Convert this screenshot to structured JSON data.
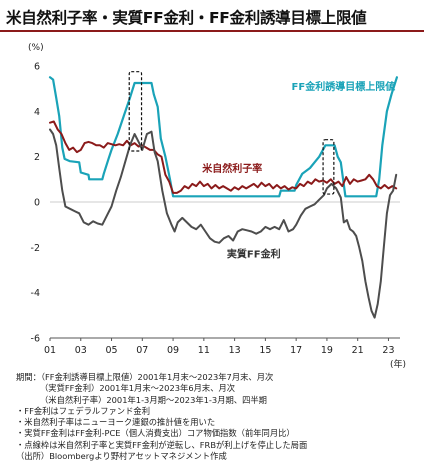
{
  "title": "米自然利子率・実質FF金利・FF金利誘導目標上限値",
  "chart_data": {
    "type": "line",
    "yunit": "(%)",
    "xunit": "(年)",
    "ylim": [
      -6,
      6
    ],
    "yticks": [
      6,
      4,
      2,
      0,
      -2,
      -4,
      -6
    ],
    "xlim": [
      2001.0,
      2023.75
    ],
    "xticks": [
      {
        "label": "01",
        "value": 2001
      },
      {
        "label": "03",
        "value": 2003
      },
      {
        "label": "05",
        "value": 2005
      },
      {
        "label": "07",
        "value": 2007
      },
      {
        "label": "09",
        "value": 2009
      },
      {
        "label": "11",
        "value": 2011
      },
      {
        "label": "13",
        "value": 2013
      },
      {
        "label": "15",
        "value": 2015
      },
      {
        "label": "17",
        "value": 2017
      },
      {
        "label": "19",
        "value": 2019
      },
      {
        "label": "21",
        "value": 2021
      },
      {
        "label": "23",
        "value": 2023
      }
    ],
    "grid": false,
    "series": [
      {
        "name": "FF金利誘導目標上限値",
        "color": "#1aa3b8",
        "points": [
          [
            2001.0,
            5.5
          ],
          [
            2001.2,
            5.4
          ],
          [
            2001.4,
            4.6
          ],
          [
            2001.6,
            3.8
          ],
          [
            2001.8,
            2.4
          ],
          [
            2001.95,
            1.9
          ],
          [
            2002.3,
            1.8
          ],
          [
            2002.9,
            1.75
          ],
          [
            2003.0,
            1.3
          ],
          [
            2003.5,
            1.2
          ],
          [
            2003.55,
            1.0
          ],
          [
            2004.4,
            1.0
          ],
          [
            2004.5,
            1.25
          ],
          [
            2004.8,
            1.9
          ],
          [
            2005.0,
            2.3
          ],
          [
            2005.4,
            3.0
          ],
          [
            2005.8,
            3.8
          ],
          [
            2006.2,
            4.6
          ],
          [
            2006.5,
            5.25
          ],
          [
            2007.6,
            5.25
          ],
          [
            2007.75,
            4.75
          ],
          [
            2008.0,
            4.2
          ],
          [
            2008.2,
            2.8
          ],
          [
            2008.5,
            2.0
          ],
          [
            2008.8,
            1.0
          ],
          [
            2009.0,
            0.25
          ],
          [
            2015.9,
            0.25
          ],
          [
            2016.0,
            0.5
          ],
          [
            2016.9,
            0.5
          ],
          [
            2017.0,
            0.75
          ],
          [
            2017.4,
            1.25
          ],
          [
            2017.9,
            1.5
          ],
          [
            2018.2,
            1.75
          ],
          [
            2018.5,
            2.0
          ],
          [
            2018.9,
            2.5
          ],
          [
            2019.5,
            2.5
          ],
          [
            2019.7,
            2.0
          ],
          [
            2019.9,
            1.75
          ],
          [
            2020.2,
            0.25
          ],
          [
            2022.2,
            0.25
          ],
          [
            2022.4,
            1.0
          ],
          [
            2022.6,
            2.5
          ],
          [
            2022.9,
            4.0
          ],
          [
            2023.2,
            4.75
          ],
          [
            2023.55,
            5.5
          ]
        ]
      },
      {
        "name": "米自然利子率",
        "color": "#8b1a1a",
        "points": [
          [
            2001.0,
            3.5
          ],
          [
            2001.25,
            3.55
          ],
          [
            2001.5,
            3.2
          ],
          [
            2001.75,
            3.0
          ],
          [
            2002.0,
            2.6
          ],
          [
            2002.25,
            2.3
          ],
          [
            2002.5,
            2.4
          ],
          [
            2002.75,
            2.2
          ],
          [
            2003.0,
            2.3
          ],
          [
            2003.25,
            2.6
          ],
          [
            2003.5,
            2.65
          ],
          [
            2003.75,
            2.6
          ],
          [
            2004.0,
            2.5
          ],
          [
            2004.25,
            2.5
          ],
          [
            2004.5,
            2.4
          ],
          [
            2004.75,
            2.6
          ],
          [
            2005.0,
            2.55
          ],
          [
            2005.25,
            2.5
          ],
          [
            2005.5,
            2.55
          ],
          [
            2005.75,
            2.5
          ],
          [
            2006.0,
            2.7
          ],
          [
            2006.25,
            2.5
          ],
          [
            2006.5,
            2.6
          ],
          [
            2006.75,
            2.45
          ],
          [
            2007.0,
            2.5
          ],
          [
            2007.25,
            2.4
          ],
          [
            2007.5,
            2.3
          ],
          [
            2007.75,
            2.3
          ],
          [
            2008.0,
            2.1
          ],
          [
            2008.25,
            2.0
          ],
          [
            2008.5,
            1.2
          ],
          [
            2008.75,
            0.9
          ],
          [
            2009.0,
            0.4
          ],
          [
            2009.25,
            0.4
          ],
          [
            2009.5,
            0.5
          ],
          [
            2009.75,
            0.7
          ],
          [
            2010.0,
            0.6
          ],
          [
            2010.25,
            0.8
          ],
          [
            2010.5,
            0.7
          ],
          [
            2010.75,
            0.9
          ],
          [
            2011.0,
            0.7
          ],
          [
            2011.25,
            0.8
          ],
          [
            2011.5,
            0.6
          ],
          [
            2011.75,
            0.75
          ],
          [
            2012.0,
            0.6
          ],
          [
            2012.25,
            0.7
          ],
          [
            2012.5,
            0.6
          ],
          [
            2012.75,
            0.5
          ],
          [
            2013.0,
            0.65
          ],
          [
            2013.25,
            0.55
          ],
          [
            2013.5,
            0.7
          ],
          [
            2013.75,
            0.6
          ],
          [
            2014.0,
            0.7
          ],
          [
            2014.25,
            0.8
          ],
          [
            2014.5,
            0.65
          ],
          [
            2014.75,
            0.85
          ],
          [
            2015.0,
            0.7
          ],
          [
            2015.25,
            0.8
          ],
          [
            2015.5,
            0.6
          ],
          [
            2015.75,
            0.75
          ],
          [
            2016.0,
            0.6
          ],
          [
            2016.25,
            0.7
          ],
          [
            2016.5,
            0.55
          ],
          [
            2016.75,
            0.65
          ],
          [
            2017.0,
            0.6
          ],
          [
            2017.25,
            0.8
          ],
          [
            2017.5,
            0.7
          ],
          [
            2017.75,
            0.9
          ],
          [
            2018.0,
            0.8
          ],
          [
            2018.25,
            1.0
          ],
          [
            2018.5,
            0.9
          ],
          [
            2018.75,
            0.95
          ],
          [
            2019.0,
            0.85
          ],
          [
            2019.25,
            1.0
          ],
          [
            2019.5,
            0.8
          ],
          [
            2019.75,
            0.9
          ],
          [
            2020.0,
            0.7
          ],
          [
            2020.25,
            1.1
          ],
          [
            2020.5,
            0.8
          ],
          [
            2020.75,
            1.0
          ],
          [
            2021.0,
            0.9
          ],
          [
            2021.25,
            0.95
          ],
          [
            2021.5,
            1.0
          ],
          [
            2021.75,
            1.2
          ],
          [
            2022.0,
            1.0
          ],
          [
            2022.25,
            0.7
          ],
          [
            2022.5,
            0.6
          ],
          [
            2022.75,
            0.75
          ],
          [
            2023.0,
            0.6
          ],
          [
            2023.25,
            0.7
          ],
          [
            2023.5,
            0.6
          ]
        ]
      },
      {
        "name": "実質FF金利",
        "color": "#4d4d4d",
        "points": [
          [
            2001.0,
            3.2
          ],
          [
            2001.2,
            3.0
          ],
          [
            2001.4,
            2.5
          ],
          [
            2001.6,
            1.5
          ],
          [
            2001.8,
            0.5
          ],
          [
            2002.0,
            -0.2
          ],
          [
            2002.3,
            -0.3
          ],
          [
            2002.6,
            -0.4
          ],
          [
            2002.9,
            -0.5
          ],
          [
            2003.2,
            -0.9
          ],
          [
            2003.5,
            -1.0
          ],
          [
            2003.8,
            -0.85
          ],
          [
            2004.1,
            -0.95
          ],
          [
            2004.4,
            -1.0
          ],
          [
            2004.7,
            -0.6
          ],
          [
            2005.0,
            -0.2
          ],
          [
            2005.3,
            0.5
          ],
          [
            2005.6,
            1.1
          ],
          [
            2005.9,
            1.8
          ],
          [
            2006.2,
            2.5
          ],
          [
            2006.5,
            3.0
          ],
          [
            2006.8,
            2.6
          ],
          [
            2007.0,
            2.3
          ],
          [
            2007.3,
            3.0
          ],
          [
            2007.6,
            3.1
          ],
          [
            2007.8,
            2.2
          ],
          [
            2008.0,
            1.8
          ],
          [
            2008.3,
            0.5
          ],
          [
            2008.6,
            -0.5
          ],
          [
            2008.9,
            -1.0
          ],
          [
            2009.1,
            -1.3
          ],
          [
            2009.3,
            -0.9
          ],
          [
            2009.6,
            -0.7
          ],
          [
            2009.9,
            -0.9
          ],
          [
            2010.2,
            -1.1
          ],
          [
            2010.5,
            -1.2
          ],
          [
            2010.8,
            -1.0
          ],
          [
            2011.1,
            -1.3
          ],
          [
            2011.4,
            -1.6
          ],
          [
            2011.7,
            -1.75
          ],
          [
            2012.0,
            -1.8
          ],
          [
            2012.3,
            -1.6
          ],
          [
            2012.6,
            -1.5
          ],
          [
            2012.9,
            -1.7
          ],
          [
            2013.2,
            -1.3
          ],
          [
            2013.5,
            -1.2
          ],
          [
            2013.8,
            -1.25
          ],
          [
            2014.1,
            -1.3
          ],
          [
            2014.4,
            -1.4
          ],
          [
            2014.7,
            -1.3
          ],
          [
            2015.0,
            -1.1
          ],
          [
            2015.3,
            -1.2
          ],
          [
            2015.6,
            -1.1
          ],
          [
            2015.9,
            -1.2
          ],
          [
            2016.2,
            -0.8
          ],
          [
            2016.5,
            -1.3
          ],
          [
            2016.8,
            -1.2
          ],
          [
            2017.0,
            -1.0
          ],
          [
            2017.3,
            -0.6
          ],
          [
            2017.6,
            -0.3
          ],
          [
            2017.9,
            -0.2
          ],
          [
            2018.2,
            -0.1
          ],
          [
            2018.5,
            0.1
          ],
          [
            2018.8,
            0.3
          ],
          [
            2019.0,
            0.6
          ],
          [
            2019.3,
            0.8
          ],
          [
            2019.6,
            0.6
          ],
          [
            2019.9,
            0.2
          ],
          [
            2020.1,
            -0.9
          ],
          [
            2020.3,
            -0.8
          ],
          [
            2020.5,
            -1.2
          ],
          [
            2020.7,
            -1.3
          ],
          [
            2020.9,
            -1.5
          ],
          [
            2021.1,
            -2.0
          ],
          [
            2021.3,
            -2.6
          ],
          [
            2021.5,
            -3.5
          ],
          [
            2021.7,
            -4.2
          ],
          [
            2021.9,
            -4.8
          ],
          [
            2022.1,
            -5.1
          ],
          [
            2022.3,
            -4.5
          ],
          [
            2022.5,
            -3.5
          ],
          [
            2022.7,
            -2.0
          ],
          [
            2022.9,
            -0.5
          ],
          [
            2023.1,
            0.3
          ],
          [
            2023.3,
            0.5
          ],
          [
            2023.5,
            1.2
          ]
        ]
      }
    ],
    "series_labels": [
      {
        "text": "FF金利誘導目標上限値",
        "x": 2016.7,
        "y": 4.95,
        "color": "#1aa3b8"
      },
      {
        "text": "米自然利子率",
        "x": 2010.9,
        "y": 1.32,
        "color": "#8b1a1a"
      },
      {
        "text": "実質FF金利",
        "x": 2012.5,
        "y": -2.45,
        "color": "#333333"
      }
    ],
    "highlight_boxes": [
      {
        "x0": 2006.15,
        "x1": 2006.95,
        "y0": 2.25,
        "y1": 5.75
      },
      {
        "x0": 2018.75,
        "x1": 2019.45,
        "y0": 0.35,
        "y1": 2.75
      }
    ]
  },
  "notes": [
    "期間：（FF金利誘導目標上限値）2001年1月末～2023年7月末、月次",
    "（実質FF金利）2001年1月末～2023年6月末、月次",
    "（米自然利子率）2001年1-3月期～2023年1-3月期、四半期",
    "・FF金利はフェデラルファンド金利",
    "・米自然利子率はニューヨーク連銀の推計値を用いた",
    "・実質FF金利はFF金利-PCE（個人消費支出）コア物価指数（前年同月比）",
    "・点線枠は米自然利子率と実質FF金利が逆転し、FRBが利上げを停止した局面",
    "（出所）Bloombergより野村アセットマネジメント作成"
  ]
}
